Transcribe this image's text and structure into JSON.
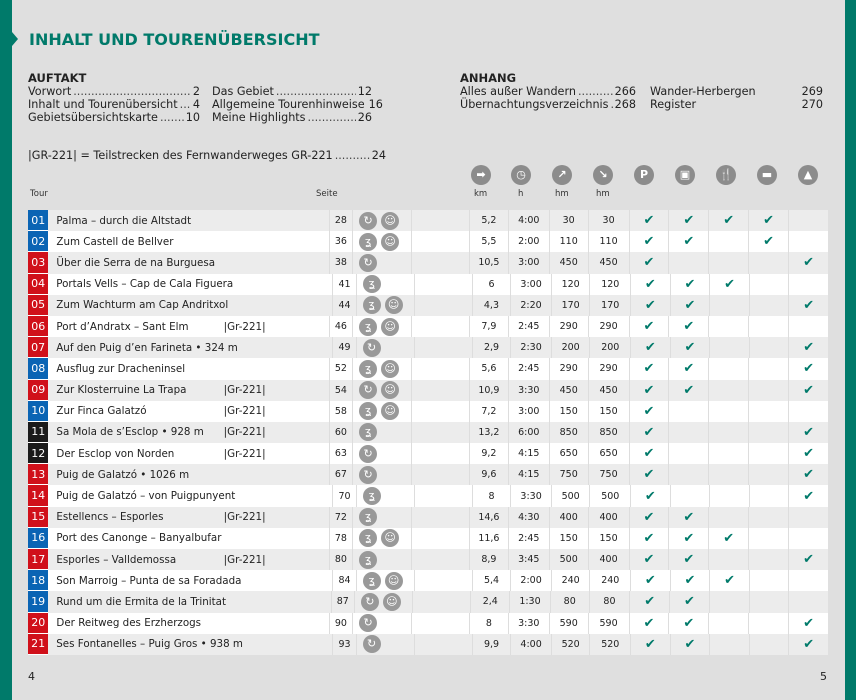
{
  "title": "INHALT UND TOURENÜBERSICHT",
  "auftakt": {
    "heading": "AUFTAKT",
    "items": [
      [
        "Vorwort",
        "2"
      ],
      [
        "Inhalt und Tourenübersicht",
        "4"
      ],
      [
        "Gebietsübersichtskarte",
        "10"
      ],
      [
        "Das Gebiet",
        "12"
      ],
      [
        "Allgemeine Tourenhinweise",
        "16"
      ],
      [
        "Meine Highlights",
        "26"
      ]
    ]
  },
  "anhang": {
    "heading": "ANHANG",
    "items": [
      [
        "Alles außer Wandern",
        "266"
      ],
      [
        "Übernachtungsverzeichnis",
        "268"
      ],
      [
        "Wander-Herbergen",
        "269"
      ],
      [
        "Register",
        "270"
      ]
    ]
  },
  "gr_note": {
    "text": "|GR-221| = Teilstrecken des Fernwanderweges GR-221",
    "page": "24"
  },
  "columns": {
    "tour": "Tour",
    "seite": "Seite",
    "km": "km",
    "h": "h",
    "up": "hm",
    "down": "hm"
  },
  "column_icons": [
    "signpost-icon",
    "clock-icon",
    "ascent-icon",
    "descent-icon",
    "parking-icon",
    "bus-icon",
    "restaurant-icon",
    "bed-icon",
    "summit-icon"
  ],
  "colors": {
    "teal": "#007a6a",
    "blue": "#0a64b4",
    "red": "#d0101a",
    "black": "#1a1a1a"
  },
  "tours": [
    {
      "n": "01",
      "c": "blue",
      "name": "Palma – durch die Altstadt",
      "gr": "",
      "p": "28",
      "t": [
        "round",
        "kids"
      ],
      "km": "5,2",
      "h": "4:00",
      "up": "30",
      "dn": "30",
      "f": [
        1,
        1,
        1,
        1,
        0
      ]
    },
    {
      "n": "02",
      "c": "blue",
      "name": "Zum Castell de Bellver",
      "gr": "",
      "p": "36",
      "t": [
        "linear",
        "kids"
      ],
      "km": "5,5",
      "h": "2:00",
      "up": "110",
      "dn": "110",
      "f": [
        1,
        1,
        0,
        1,
        0
      ]
    },
    {
      "n": "03",
      "c": "red",
      "name": "Über die Serra de na Burguesa",
      "gr": "",
      "p": "38",
      "t": [
        "round"
      ],
      "km": "10,5",
      "h": "3:00",
      "up": "450",
      "dn": "450",
      "f": [
        1,
        0,
        0,
        0,
        1
      ]
    },
    {
      "n": "04",
      "c": "red",
      "name": "Portals Vells – Cap de Cala Figuera",
      "gr": "",
      "p": "41",
      "t": [
        "linear"
      ],
      "km": "6",
      "h": "3:00",
      "up": "120",
      "dn": "120",
      "f": [
        1,
        1,
        1,
        0,
        0
      ]
    },
    {
      "n": "05",
      "c": "red",
      "name": "Zum Wachturm am Cap Andritxol",
      "gr": "",
      "p": "44",
      "t": [
        "linear",
        "kids"
      ],
      "km": "4,3",
      "h": "2:20",
      "up": "170",
      "dn": "170",
      "f": [
        1,
        1,
        0,
        0,
        1
      ]
    },
    {
      "n": "06",
      "c": "red",
      "name": "Port d’Andratx – Sant Elm",
      "gr": "|Gr-221|",
      "p": "46",
      "t": [
        "linear",
        "kids"
      ],
      "km": "7,9",
      "h": "2:45",
      "up": "290",
      "dn": "290",
      "f": [
        1,
        1,
        0,
        0,
        0
      ]
    },
    {
      "n": "07",
      "c": "red",
      "name": "Auf den Puig d’en Farineta • 324 m",
      "gr": "",
      "p": "49",
      "t": [
        "round"
      ],
      "km": "2,9",
      "h": "2:30",
      "up": "200",
      "dn": "200",
      "f": [
        1,
        1,
        0,
        0,
        1
      ]
    },
    {
      "n": "08",
      "c": "blue",
      "name": "Ausflug zur Dracheninsel",
      "gr": "",
      "p": "52",
      "t": [
        "linear",
        "kids"
      ],
      "km": "5,6",
      "h": "2:45",
      "up": "290",
      "dn": "290",
      "f": [
        1,
        1,
        0,
        0,
        1
      ]
    },
    {
      "n": "09",
      "c": "red",
      "name": "Zur Klosterruine La Trapa",
      "gr": "|Gr-221|",
      "p": "54",
      "t": [
        "round",
        "kids"
      ],
      "km": "10,9",
      "h": "3:30",
      "up": "450",
      "dn": "450",
      "f": [
        1,
        1,
        0,
        0,
        1
      ]
    },
    {
      "n": "10",
      "c": "blue",
      "name": "Zur Finca Galatzó",
      "gr": "|Gr-221|",
      "p": "58",
      "t": [
        "linear",
        "kids"
      ],
      "km": "7,2",
      "h": "3:00",
      "up": "150",
      "dn": "150",
      "f": [
        1,
        0,
        0,
        0,
        0
      ]
    },
    {
      "n": "11",
      "c": "black",
      "name": "Sa Mola de s’Esclop • 928 m",
      "gr": "|Gr-221|",
      "p": "60",
      "t": [
        "linear"
      ],
      "km": "13,2",
      "h": "6:00",
      "up": "850",
      "dn": "850",
      "f": [
        1,
        0,
        0,
        0,
        1
      ]
    },
    {
      "n": "12",
      "c": "black",
      "name": "Der Esclop von Norden",
      "gr": "|Gr-221|",
      "p": "63",
      "t": [
        "round"
      ],
      "km": "9,2",
      "h": "4:15",
      "up": "650",
      "dn": "650",
      "f": [
        1,
        0,
        0,
        0,
        1
      ]
    },
    {
      "n": "13",
      "c": "red",
      "name": "Puig de Galatzó • 1026 m",
      "gr": "",
      "p": "67",
      "t": [
        "round"
      ],
      "km": "9,6",
      "h": "4:15",
      "up": "750",
      "dn": "750",
      "f": [
        1,
        0,
        0,
        0,
        1
      ]
    },
    {
      "n": "14",
      "c": "red",
      "name": "Puig de Galatzó – von Puigpunyent",
      "gr": "",
      "p": "70",
      "t": [
        "linear"
      ],
      "km": "8",
      "h": "3:30",
      "up": "500",
      "dn": "500",
      "f": [
        1,
        0,
        0,
        0,
        1
      ]
    },
    {
      "n": "15",
      "c": "red",
      "name": "Estellencs – Esporles",
      "gr": "|Gr-221|",
      "p": "72",
      "t": [
        "linear"
      ],
      "km": "14,6",
      "h": "4:30",
      "up": "400",
      "dn": "400",
      "f": [
        1,
        1,
        0,
        0,
        0
      ]
    },
    {
      "n": "16",
      "c": "blue",
      "name": "Port des Canonge – Banyalbufar",
      "gr": "",
      "p": "78",
      "t": [
        "linear",
        "kids"
      ],
      "km": "11,6",
      "h": "2:45",
      "up": "150",
      "dn": "150",
      "f": [
        1,
        1,
        1,
        0,
        0
      ]
    },
    {
      "n": "17",
      "c": "red",
      "name": "Esporles – Valldemossa",
      "gr": "|Gr-221|",
      "p": "80",
      "t": [
        "linear"
      ],
      "km": "8,9",
      "h": "3:45",
      "up": "500",
      "dn": "400",
      "f": [
        1,
        1,
        0,
        0,
        1
      ]
    },
    {
      "n": "18",
      "c": "blue",
      "name": "Son Marroig – Punta de sa Foradada",
      "gr": "",
      "p": "84",
      "t": [
        "linear",
        "kids"
      ],
      "km": "5,4",
      "h": "2:00",
      "up": "240",
      "dn": "240",
      "f": [
        1,
        1,
        1,
        0,
        0
      ]
    },
    {
      "n": "19",
      "c": "blue",
      "name": "Rund um die Ermita de la Trinitat",
      "gr": "",
      "p": "87",
      "t": [
        "round",
        "kids"
      ],
      "km": "2,4",
      "h": "1:30",
      "up": "80",
      "dn": "80",
      "f": [
        1,
        1,
        0,
        0,
        0
      ]
    },
    {
      "n": "20",
      "c": "red",
      "name": "Der Reitweg des Erzherzogs",
      "gr": "",
      "p": "90",
      "t": [
        "round"
      ],
      "km": "8",
      "h": "3:30",
      "up": "590",
      "dn": "590",
      "f": [
        1,
        1,
        0,
        0,
        1
      ]
    },
    {
      "n": "21",
      "c": "red",
      "name": "Ses Fontanelles – Puig Gros • 938 m",
      "gr": "",
      "p": "93",
      "t": [
        "round"
      ],
      "km": "9,9",
      "h": "4:00",
      "up": "520",
      "dn": "520",
      "f": [
        1,
        1,
        0,
        0,
        1
      ]
    }
  ],
  "page_left": "4",
  "page_right": "5"
}
